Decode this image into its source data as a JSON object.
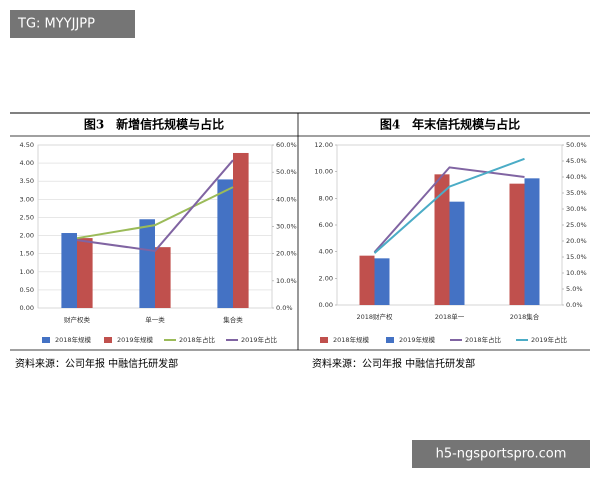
{
  "watermark_top": "TG: MYYJJPP",
  "watermark_bottom": "h5-ngsportspro.com",
  "chart_data": [
    {
      "type": "combo",
      "title": "图3　新增信托规模与占比",
      "categories": [
        "财产权类",
        "单一类",
        "集合类"
      ],
      "series": [
        {
          "name": "2018年规模",
          "color": "#4472c4",
          "values": [
            2.07,
            2.45,
            3.55
          ]
        },
        {
          "name": "2019年规模",
          "color": "#c0504d",
          "values": [
            1.93,
            1.68,
            4.28
          ]
        },
        {
          "name": "2018年占比",
          "color": "#9bbb59",
          "axis": "y2",
          "values": [
            25.7,
            30.5,
            44.5
          ]
        },
        {
          "name": "2019年占比",
          "color": "#8064a2",
          "axis": "y2",
          "values": [
            25,
            21,
            54.4
          ]
        }
      ],
      "ylim": [
        0,
        4.5
      ],
      "yticks": [
        {
          "value": 0,
          "label": "0.00"
        },
        {
          "value": 0.5,
          "label": "0.50"
        },
        {
          "value": 1,
          "label": "1.00"
        },
        {
          "value": 1.5,
          "label": "1.50"
        },
        {
          "value": 2,
          "label": "2.00"
        },
        {
          "value": 2.5,
          "label": "2.50"
        },
        {
          "value": 3,
          "label": "3.00"
        },
        {
          "value": 3.5,
          "label": "3.50"
        },
        {
          "value": 4,
          "label": "4.00"
        },
        {
          "value": 4.5,
          "label": "4.50"
        }
      ],
      "y2lim": [
        0,
        60
      ],
      "y2ticks": [
        {
          "value": 0,
          "label": "0.0%"
        },
        {
          "value": 10,
          "label": "10.0%"
        },
        {
          "value": 20,
          "label": "20.0%"
        },
        {
          "value": 30,
          "label": "30.0%"
        },
        {
          "value": 40,
          "label": "40.0%"
        },
        {
          "value": 50,
          "label": "50.0%"
        },
        {
          "value": 60,
          "label": "60.0%"
        }
      ],
      "grid": true,
      "source": "资料来源：公司年报 中融信托研发部"
    },
    {
      "type": "combo",
      "title": "图4　年末信托规模与占比",
      "categories": [
        "2018财产权",
        "2018单一",
        "2018集合"
      ],
      "series": [
        {
          "name": "2018年规模",
          "color": "#c0504d",
          "values": [
            3.7,
            9.8,
            9.1
          ]
        },
        {
          "name": "2019年规模",
          "color": "#4472c4",
          "values": [
            3.5,
            7.75,
            9.5
          ]
        },
        {
          "name": "2018年占比",
          "color": "#8064a2",
          "axis": "y2",
          "values": [
            16.5,
            43,
            40
          ]
        },
        {
          "name": "2019年占比",
          "color": "#4bacc6",
          "axis": "y2",
          "values": [
            16.2,
            37,
            45.7
          ]
        }
      ],
      "ylim": [
        0,
        12
      ],
      "yticks": [
        {
          "value": 0,
          "label": "0.00"
        },
        {
          "value": 2,
          "label": "2.00"
        },
        {
          "value": 4,
          "label": "4.00"
        },
        {
          "value": 6,
          "label": "6.00"
        },
        {
          "value": 8,
          "label": "8.00"
        },
        {
          "value": 10,
          "label": "10.00"
        },
        {
          "value": 12,
          "label": "12.00"
        }
      ],
      "y2lim": [
        0,
        50
      ],
      "y2ticks": [
        {
          "value": 0,
          "label": "0.0%"
        },
        {
          "value": 5,
          "label": "5.0%"
        },
        {
          "value": 10,
          "label": "10.0%"
        },
        {
          "value": 15,
          "label": "15.0%"
        },
        {
          "value": 20,
          "label": "20.0%"
        },
        {
          "value": 25,
          "label": "25.0%"
        },
        {
          "value": 30,
          "label": "30.0%"
        },
        {
          "value": 35,
          "label": "35.0%"
        },
        {
          "value": 40,
          "label": "40.0%"
        },
        {
          "value": 45,
          "label": "45.0%"
        },
        {
          "value": 50,
          "label": "50.0%"
        }
      ],
      "grid": false,
      "source": "资料来源：公司年报 中融信托研发部"
    }
  ]
}
